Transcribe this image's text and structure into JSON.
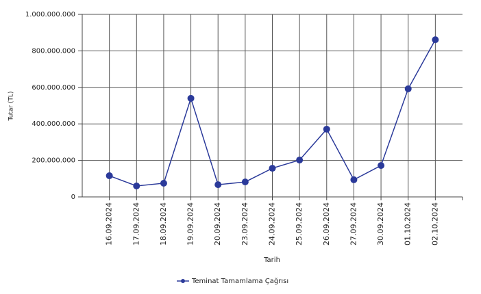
{
  "chart_data": {
    "type": "line",
    "x_label": "Tarih",
    "y_label": "Tutar (TL)",
    "categories": [
      "16.09.2024",
      "17.09.2024",
      "18.09.2024",
      "19.09.2024",
      "20.09.2024",
      "23.09.2024",
      "24.09.2024",
      "25.09.2024",
      "26.09.2024",
      "27.09.2024",
      "30.09.2024",
      "01.10.2024",
      "02.10.2024"
    ],
    "series": [
      {
        "name": "Teminat Tamamlama Çağrısı",
        "color": "#2b3a9a",
        "values": [
          116000000,
          60000000,
          75000000,
          540000000,
          67000000,
          82000000,
          157000000,
          202000000,
          371000000,
          94000000,
          172000000,
          592000000,
          861000000
        ]
      }
    ],
    "ylim": [
      0,
      1000000000
    ],
    "yticks": [
      0,
      {
        "value": 200000000,
        "label": "200.000.000"
      },
      {
        "value": 400000000,
        "label": "400.000.000"
      },
      {
        "value": 600000000,
        "label": "600.000.000"
      },
      {
        "value": 800000000,
        "label": "800.000.000"
      },
      {
        "value": 1000000000,
        "label": "1.000.000.000"
      }
    ],
    "grid": true,
    "legend": "bottom"
  }
}
